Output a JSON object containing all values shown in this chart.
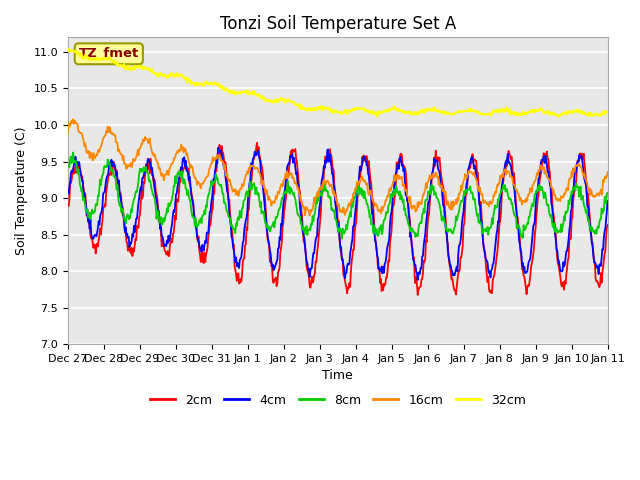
{
  "title": "Tonzi Soil Temperature Set A",
  "xlabel": "Time",
  "ylabel": "Soil Temperature (C)",
  "ylim": [
    7.0,
    11.2
  ],
  "annotation": "TZ_fmet",
  "legend_labels": [
    "2cm",
    "4cm",
    "8cm",
    "16cm",
    "32cm"
  ],
  "legend_colors": [
    "#ff0000",
    "#0000ff",
    "#00cc00",
    "#ff8800",
    "#ffff00"
  ],
  "line_widths": [
    1.3,
    1.3,
    1.3,
    1.3,
    1.6
  ],
  "xtick_labels": [
    "Dec 27",
    "Dec 28",
    "Dec 29",
    "Dec 30",
    "Dec 31",
    "Jan 1",
    "Jan 2",
    "Jan 3",
    "Jan 4",
    "Jan 5",
    "Jan 6",
    "Jan 7",
    "Jan 8",
    "Jan 9",
    "Jan 10",
    "Jan 11"
  ],
  "plot_bg_color": "#e8e8e8",
  "title_fontsize": 12,
  "axis_fontsize": 9,
  "tick_fontsize": 8
}
